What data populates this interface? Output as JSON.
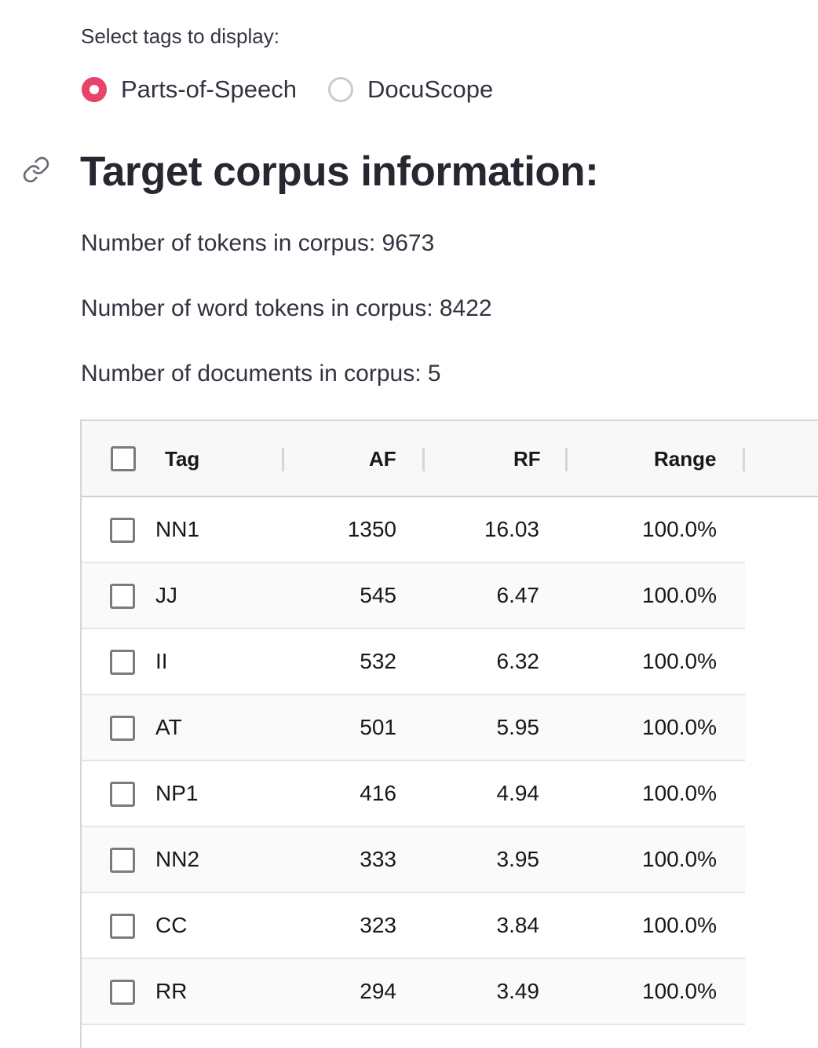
{
  "tag_selector": {
    "label": "Select tags to display:",
    "options": [
      {
        "label": "Parts-of-Speech",
        "checked": true
      },
      {
        "label": "DocuScope",
        "checked": false
      }
    ]
  },
  "heading": "Target corpus information:",
  "corpus_info": {
    "tokens": "Number of tokens in corpus: 9673",
    "word_tokens": "Number of word tokens in corpus: 8422",
    "documents": "Number of documents in corpus: 5"
  },
  "table": {
    "columns": [
      "Tag",
      "AF",
      "RF",
      "Range"
    ],
    "rows": [
      {
        "tag": "NN1",
        "af": "1350",
        "rf": "16.03",
        "range": "100.0%"
      },
      {
        "tag": "JJ",
        "af": "545",
        "rf": "6.47",
        "range": "100.0%"
      },
      {
        "tag": "II",
        "af": "532",
        "rf": "6.32",
        "range": "100.0%"
      },
      {
        "tag": "AT",
        "af": "501",
        "rf": "5.95",
        "range": "100.0%"
      },
      {
        "tag": "NP1",
        "af": "416",
        "rf": "4.94",
        "range": "100.0%"
      },
      {
        "tag": "NN2",
        "af": "333",
        "rf": "3.95",
        "range": "100.0%"
      },
      {
        "tag": "CC",
        "af": "323",
        "rf": "3.84",
        "range": "100.0%"
      },
      {
        "tag": "RR",
        "af": "294",
        "rf": "3.49",
        "range": "100.0%"
      }
    ]
  },
  "colors": {
    "accent": "#e8436a",
    "text": "#31333f",
    "header_bg": "#f8f8f8"
  },
  "icons": {
    "anchor": "link-icon"
  }
}
